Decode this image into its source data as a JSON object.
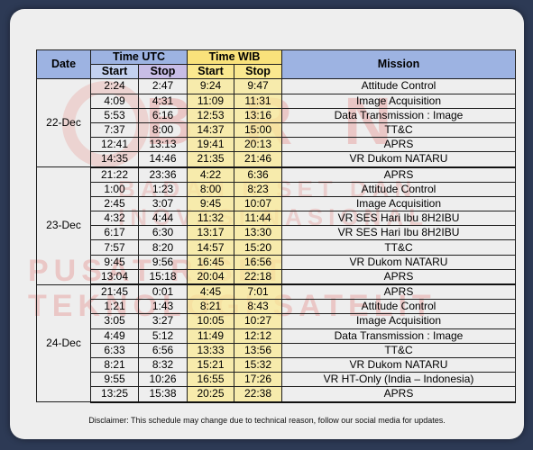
{
  "header": {
    "date": "Date",
    "time_utc": "Time UTC",
    "time_wib": "Time WIB",
    "mission": "Mission",
    "start": "Start",
    "stop": "Stop"
  },
  "groups": [
    {
      "date": "22-Dec",
      "rows": [
        {
          "utc_start": "2:24",
          "utc_stop": "2:47",
          "wib_start": "9:24",
          "wib_stop": "9:47",
          "mission": "Attitude Control"
        },
        {
          "utc_start": "4:09",
          "utc_stop": "4:31",
          "wib_start": "11:09",
          "wib_stop": "11:31",
          "mission": "Image Acquisition"
        },
        {
          "utc_start": "5:53",
          "utc_stop": "6:16",
          "wib_start": "12:53",
          "wib_stop": "13:16",
          "mission": "Data Transmission : Image"
        },
        {
          "utc_start": "7:37",
          "utc_stop": "8:00",
          "wib_start": "14:37",
          "wib_stop": "15:00",
          "mission": "TT&C"
        },
        {
          "utc_start": "12:41",
          "utc_stop": "13:13",
          "wib_start": "19:41",
          "wib_stop": "20:13",
          "mission": "APRS"
        },
        {
          "utc_start": "14:35",
          "utc_stop": "14:46",
          "wib_start": "21:35",
          "wib_stop": "21:46",
          "mission": "VR Dukom NATARU"
        }
      ]
    },
    {
      "date": "23-Dec",
      "rows": [
        {
          "utc_start": "21:22",
          "utc_stop": "23:36",
          "wib_start": "4:22",
          "wib_stop": "6:36",
          "mission": "APRS"
        },
        {
          "utc_start": "1:00",
          "utc_stop": "1:23",
          "wib_start": "8:00",
          "wib_stop": "8:23",
          "mission": "Attitude Control"
        },
        {
          "utc_start": "2:45",
          "utc_stop": "3:07",
          "wib_start": "9:45",
          "wib_stop": "10:07",
          "mission": "Image Acquisition"
        },
        {
          "utc_start": "4:32",
          "utc_stop": "4:44",
          "wib_start": "11:32",
          "wib_stop": "11:44",
          "mission": "VR SES Hari Ibu 8H2IBU"
        },
        {
          "utc_start": "6:17",
          "utc_stop": "6:30",
          "wib_start": "13:17",
          "wib_stop": "13:30",
          "mission": "VR SES Hari Ibu 8H2IBU"
        },
        {
          "utc_start": "7:57",
          "utc_stop": "8:20",
          "wib_start": "14:57",
          "wib_stop": "15:20",
          "mission": "TT&C"
        },
        {
          "utc_start": "9:45",
          "utc_stop": "9:56",
          "wib_start": "16:45",
          "wib_stop": "16:56",
          "mission": "VR Dukom NATARU"
        },
        {
          "utc_start": "13:04",
          "utc_stop": "15:18",
          "wib_start": "20:04",
          "wib_stop": "22:18",
          "mission": "APRS"
        }
      ]
    },
    {
      "date": "24-Dec",
      "rows": [
        {
          "utc_start": "21:45",
          "utc_stop": "0:01",
          "wib_start": "4:45",
          "wib_stop": "7:01",
          "mission": "APRS"
        },
        {
          "utc_start": "1:21",
          "utc_stop": "1:43",
          "wib_start": "8:21",
          "wib_stop": "8:43",
          "mission": "Attitude Control"
        },
        {
          "utc_start": "3:05",
          "utc_stop": "3:27",
          "wib_start": "10:05",
          "wib_stop": "10:27",
          "mission": "Image Acquisition"
        },
        {
          "utc_start": "4:49",
          "utc_stop": "5:12",
          "wib_start": "11:49",
          "wib_stop": "12:12",
          "mission": "Data Transmission : Image"
        },
        {
          "utc_start": "6:33",
          "utc_stop": "6:56",
          "wib_start": "13:33",
          "wib_stop": "13:56",
          "mission": "TT&C"
        },
        {
          "utc_start": "8:21",
          "utc_stop": "8:32",
          "wib_start": "15:21",
          "wib_stop": "15:32",
          "mission": "VR Dukom NATARU"
        },
        {
          "utc_start": "9:55",
          "utc_stop": "10:26",
          "wib_start": "16:55",
          "wib_stop": "17:26",
          "mission": "VR HT-Only (India – Indonesia)"
        },
        {
          "utc_start": "13:25",
          "utc_stop": "15:38",
          "wib_start": "20:25",
          "wib_stop": "22:38",
          "mission": "APRS"
        }
      ]
    }
  ],
  "disclaimer": "Disclaimer: This schedule may change due to technical reason, follow our social media for updates.",
  "watermark": {
    "line1": "B   R N",
    "line2": "BADAN RISET DAN INOVASI NASIONAL",
    "line3": "PUSAT RISET TEKNOLOGI SATELIT"
  },
  "colors": {
    "page_bg": "#2d3a55",
    "card_bg": "#eeeeee",
    "header_blue": "#9db3e2",
    "header_yellow": "#f9e27b",
    "wib_column": "#fae996",
    "watermark": "#e7a9a6"
  }
}
